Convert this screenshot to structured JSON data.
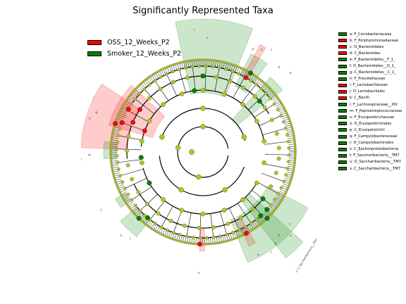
{
  "chart_data": {
    "type": "cladogram",
    "title": "Significantly Represented Taxa",
    "legend_position": "top-left",
    "groups": [
      {
        "name": "OSS_12_Weeks_P2",
        "color": "#ff0000"
      },
      {
        "name": "Smoker_12_Weeks_P2",
        "color": "#008000"
      }
    ],
    "node_default_color": "#b5c21e",
    "taxa": [
      {
        "code": "a",
        "label": "a: F_Coriobacteriaceae",
        "group": "Smoker_12_Weeks_P2"
      },
      {
        "code": "b",
        "label": "b: F_Porphyromonadaceae",
        "group": "OSS_12_Weeks_P2"
      },
      {
        "code": "c",
        "label": "c: O_Bacteroidales",
        "group": "OSS_12_Weeks_P2"
      },
      {
        "code": "d",
        "label": "d: C_Bacteroides",
        "group": "OSS_12_Weeks_P2"
      },
      {
        "code": "e",
        "label": "e: F_Bacteroidetes__F_1_",
        "group": "Smoker_12_Weeks_P2"
      },
      {
        "code": "f",
        "label": "f: O_Bacteroidetes__O_1_",
        "group": "Smoker_12_Weeks_P2"
      },
      {
        "code": "g",
        "label": "g: C_Bacteroidetes__C_1_",
        "group": "Smoker_12_Weeks_P2"
      },
      {
        "code": "h",
        "label": "h: F_Prevotellaceae",
        "group": "Smoker_12_Weeks_P2"
      },
      {
        "code": "i",
        "label": "i: F_Lactobacillaceae",
        "group": "OSS_12_Weeks_P2"
      },
      {
        "code": "j",
        "label": "j: O_Lactobacillales",
        "group": "OSS_12_Weeks_P2"
      },
      {
        "code": "k",
        "label": "k: C_Bacilli",
        "group": "OSS_12_Weeks_P2"
      },
      {
        "code": "l",
        "label": "l: F_Lachnospiraceae__XIV",
        "group": "Smoker_12_Weeks_P2"
      },
      {
        "code": "m",
        "label": "m: F_Peptostreptococcaceae",
        "group": "Smoker_12_Weeks_P2"
      },
      {
        "code": "n",
        "label": "n: F_Erysipelotrichaceae",
        "group": "Smoker_12_Weeks_P2"
      },
      {
        "code": "o",
        "label": "o: O_Erysipelotrichales",
        "group": "Smoker_12_Weeks_P2"
      },
      {
        "code": "p",
        "label": "p: C_Erysipelotrichi",
        "group": "Smoker_12_Weeks_P2"
      },
      {
        "code": "q",
        "label": "q: F_Campylobacteraceae",
        "group": "Smoker_12_Weeks_P2"
      },
      {
        "code": "r",
        "label": "r: O_Campylobacterales",
        "group": "Smoker_12_Weeks_P2"
      },
      {
        "code": "s",
        "label": "s: C_Epsilonproteobacteria",
        "group": "Smoker_12_Weeks_P2"
      },
      {
        "code": "t",
        "label": "t: F_Saccharibacteria__TM7",
        "group": "Smoker_12_Weeks_P2"
      },
      {
        "code": "u",
        "label": "u: O_Saccharibacteria__TM7",
        "group": "Smoker_12_Weeks_P2"
      },
      {
        "code": "v",
        "label": "v: C_Saccharibacteria__TM7",
        "group": "Smoker_12_Weeks_P2"
      }
    ],
    "arc_labels": [
      "a",
      "b",
      "c",
      "d",
      "e",
      "f",
      "g",
      "h",
      "i",
      "j",
      "k",
      "l",
      "m",
      "n",
      "o",
      "p",
      "q",
      "r",
      "s",
      "t",
      "u",
      "v"
    ],
    "side_label": "v: C_Saccharibacteria__TM7"
  }
}
